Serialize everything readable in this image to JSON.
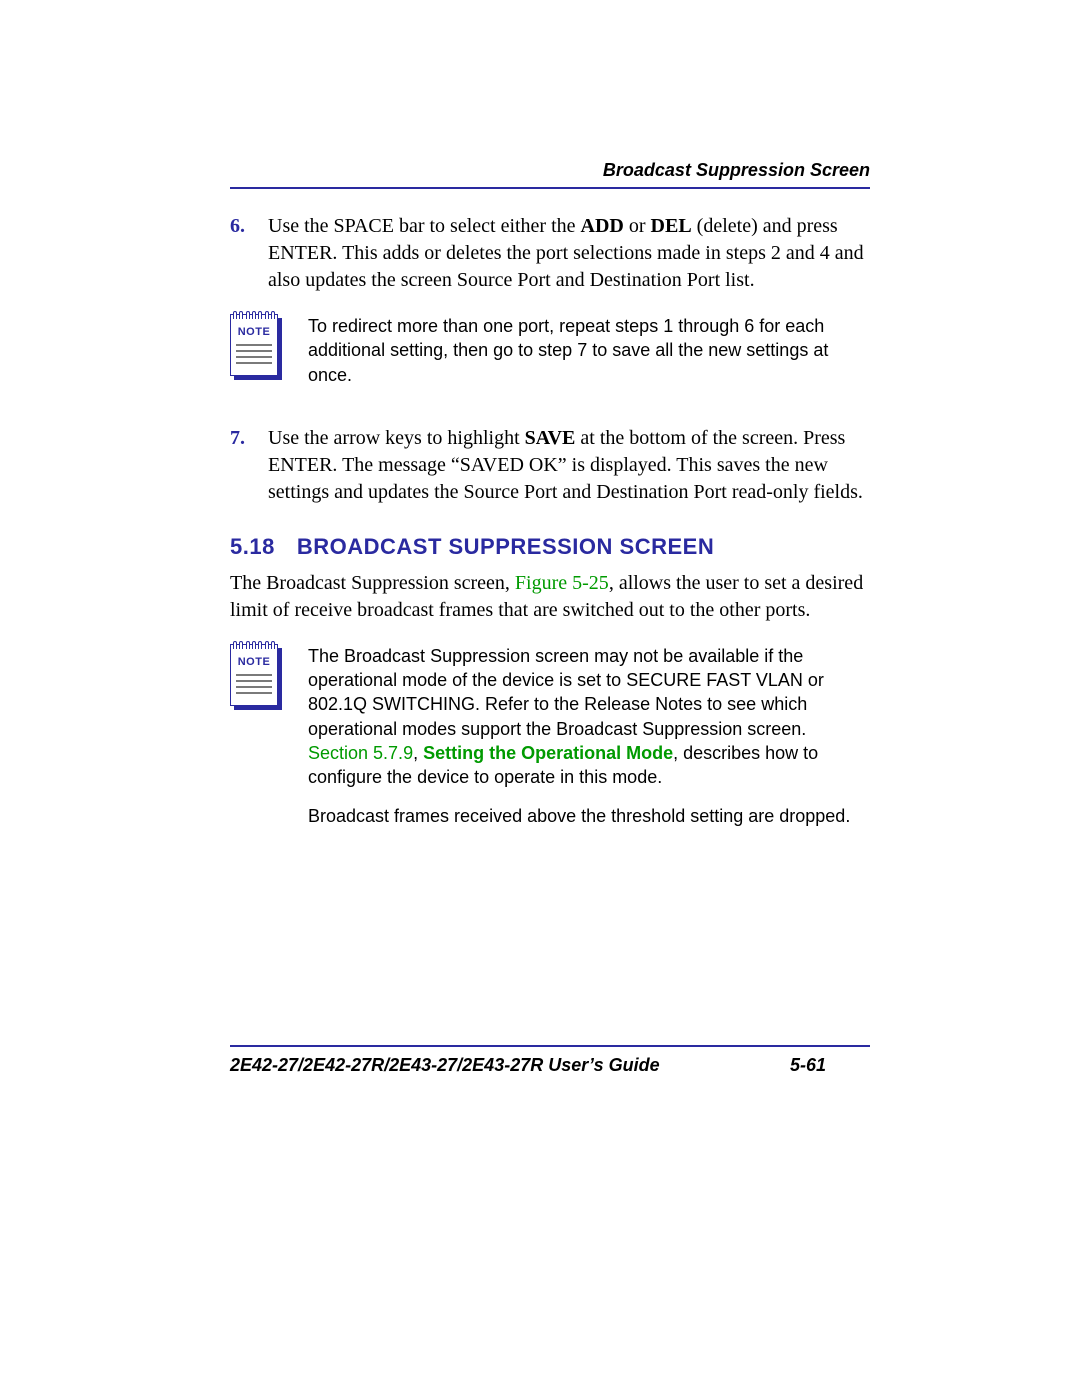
{
  "colors": {
    "accent": "#2a2aa0",
    "link": "#009a00",
    "text": "#000000",
    "background": "#ffffff",
    "note_line": "#7a7a7a"
  },
  "fonts": {
    "body_family": "Times New Roman",
    "ui_family": "Arial",
    "body_size_pt": 15,
    "note_size_pt": 13,
    "heading_size_pt": 16
  },
  "header": {
    "running_title": "Broadcast Suppression Screen"
  },
  "steps": {
    "step6": {
      "num": "6.",
      "t1": "Use the SPACE bar to select either the ",
      "b1": "ADD",
      "t2": " or ",
      "b2": "DEL",
      "t3": " (delete) and press ENTER. This adds or deletes the port selections made in steps 2 and 4 and also updates the screen Source Port and Destination Port list."
    },
    "step7": {
      "num": "7.",
      "t1": "Use the arrow keys to highlight ",
      "b1": "SAVE",
      "t2": " at the bottom of the screen. Press ENTER. The message “SAVED OK” is displayed. This saves the new settings and updates the Source Port and Destination Port read-only fields."
    }
  },
  "note1": {
    "label": "NOTE",
    "text": "To redirect more than one port, repeat steps 1 through 6 for each additional setting, then go to step 7 to save all the new settings at once."
  },
  "section": {
    "num": "5.18",
    "title": "BROADCAST SUPPRESSION SCREEN",
    "intro_a": "The Broadcast Suppression screen, ",
    "intro_link": "Figure 5-25",
    "intro_b": ", allows the user to set a desired limit of receive broadcast frames that are switched out to the other ports."
  },
  "note2": {
    "label": "NOTE",
    "p1_a": "The Broadcast Suppression screen may not be available if the operational mode of the device is set to SECURE FAST VLAN or 802.1Q SWITCHING. Refer to the Release Notes to see which operational modes support the Broadcast Suppression screen. ",
    "p1_link1": "Section 5.7.9",
    "p1_sep": ", ",
    "p1_link2": "Setting the Operational Mode",
    "p1_b": ", describes how to configure the device to operate in this mode.",
    "p2": "Broadcast frames received above the threshold setting are dropped."
  },
  "footer": {
    "title": "2E42-27/2E42-27R/2E43-27/2E43-27R User’s Guide",
    "page": "5-61"
  }
}
